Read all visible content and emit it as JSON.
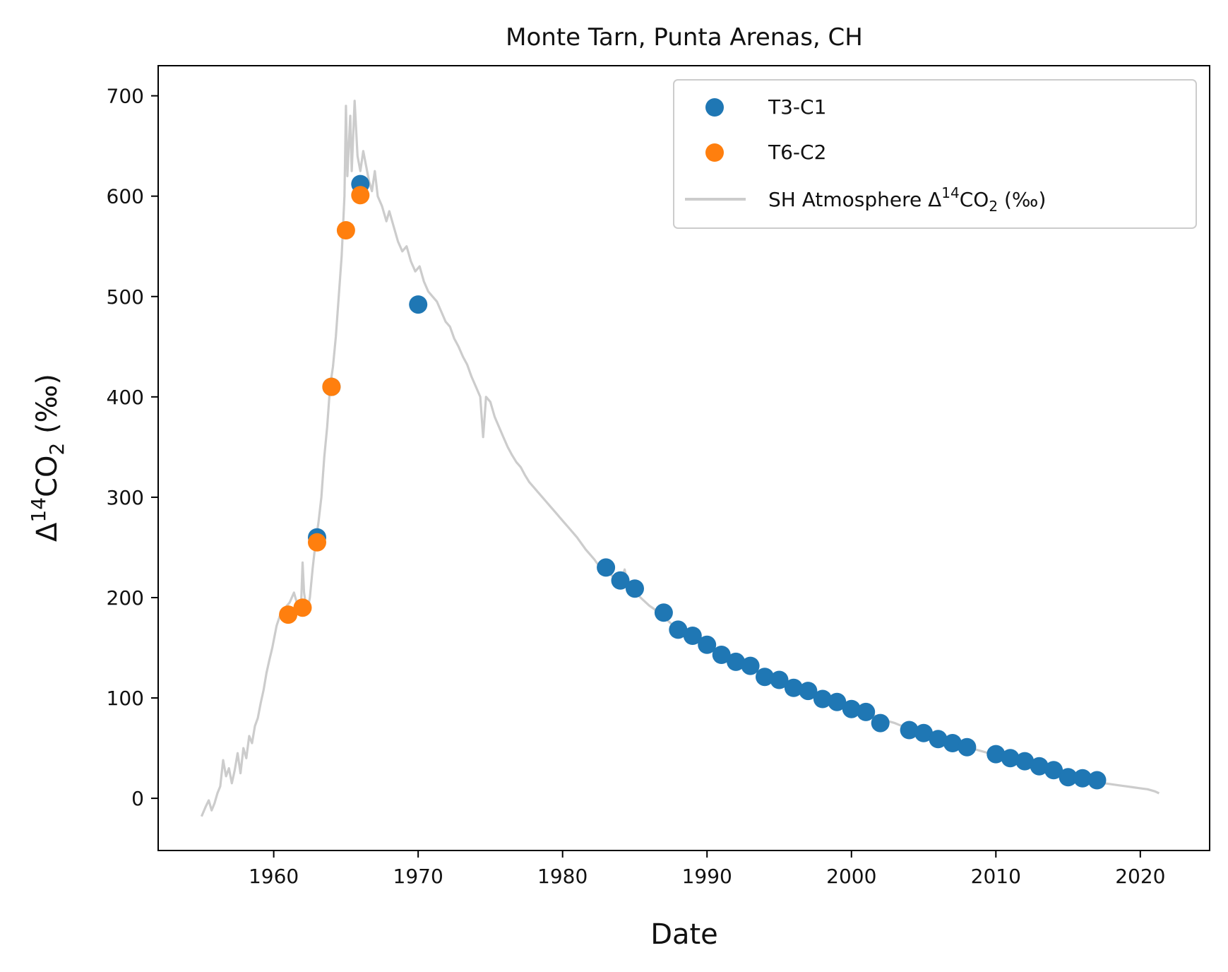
{
  "chart_data": {
    "type": "scatter",
    "title": "Monte Tarn, Punta Arenas, CH",
    "xlabel": "Date",
    "ylabel_prefix": "Δ",
    "ylabel_sup": "14",
    "ylabel_mid": "CO",
    "ylabel_sub": "2",
    "ylabel_suffix": " (‰)",
    "xlim": [
      1952.0,
      2024.8
    ],
    "ylim": [
      -52,
      730
    ],
    "xticks": [
      1960,
      1970,
      1980,
      1990,
      2000,
      2010,
      2020
    ],
    "yticks": [
      0,
      100,
      200,
      300,
      400,
      500,
      600,
      700
    ],
    "legend_position": "top-right",
    "series": [
      {
        "name": "T3-C1",
        "color": "#1f77b4",
        "marker": "circle",
        "points": [
          [
            1963,
            260
          ],
          [
            1964,
            410
          ],
          [
            1966,
            612
          ],
          [
            1970,
            492
          ],
          [
            1983,
            230
          ],
          [
            1984,
            217
          ],
          [
            1985,
            209
          ],
          [
            1987,
            185
          ],
          [
            1988,
            168
          ],
          [
            1989,
            162
          ],
          [
            1990,
            153
          ],
          [
            1991,
            143
          ],
          [
            1992,
            136
          ],
          [
            1993,
            132
          ],
          [
            1994,
            121
          ],
          [
            1995,
            118
          ],
          [
            1996,
            110
          ],
          [
            1997,
            107
          ],
          [
            1998,
            99
          ],
          [
            1999,
            96
          ],
          [
            2000,
            89
          ],
          [
            2001,
            86
          ],
          [
            2002,
            75
          ],
          [
            2004,
            68
          ],
          [
            2005,
            65
          ],
          [
            2006,
            59
          ],
          [
            2007,
            55
          ],
          [
            2008,
            51
          ],
          [
            2010,
            44
          ],
          [
            2011,
            40
          ],
          [
            2012,
            37
          ],
          [
            2013,
            32
          ],
          [
            2014,
            28
          ],
          [
            2015,
            21
          ],
          [
            2016,
            20
          ],
          [
            2017,
            18
          ]
        ]
      },
      {
        "name": "T6-C2",
        "color": "#ff7f0e",
        "marker": "circle",
        "points": [
          [
            1961,
            183
          ],
          [
            1962,
            190
          ],
          [
            1963,
            255
          ],
          [
            1964,
            410
          ],
          [
            1965,
            566
          ],
          [
            1966,
            601
          ]
        ]
      },
      {
        "name_prefix": "SH Atmosphere Δ",
        "name_sup": "14",
        "name_mid": "CO",
        "name_sub": "2",
        "name_suffix": " (‰)",
        "color": "#cccccc",
        "marker": "line",
        "points": [
          [
            1955.0,
            -18
          ],
          [
            1955.3,
            -8
          ],
          [
            1955.5,
            -2
          ],
          [
            1955.7,
            -12
          ],
          [
            1955.9,
            -5
          ],
          [
            1956.1,
            5
          ],
          [
            1956.3,
            12
          ],
          [
            1956.5,
            38
          ],
          [
            1956.7,
            22
          ],
          [
            1956.9,
            30
          ],
          [
            1957.1,
            15
          ],
          [
            1957.3,
            28
          ],
          [
            1957.5,
            45
          ],
          [
            1957.7,
            25
          ],
          [
            1957.9,
            50
          ],
          [
            1958.1,
            40
          ],
          [
            1958.3,
            62
          ],
          [
            1958.5,
            55
          ],
          [
            1958.7,
            72
          ],
          [
            1958.9,
            80
          ],
          [
            1959.1,
            95
          ],
          [
            1959.3,
            108
          ],
          [
            1959.5,
            125
          ],
          [
            1959.7,
            138
          ],
          [
            1959.9,
            150
          ],
          [
            1960.2,
            172
          ],
          [
            1960.5,
            185
          ],
          [
            1960.8,
            190
          ],
          [
            1961.1,
            195
          ],
          [
            1961.4,
            205
          ],
          [
            1961.7,
            190
          ],
          [
            1961.9,
            195
          ],
          [
            1962.0,
            235
          ],
          [
            1962.1,
            205
          ],
          [
            1962.3,
            185
          ],
          [
            1962.5,
            200
          ],
          [
            1962.7,
            230
          ],
          [
            1962.9,
            255
          ],
          [
            1963.1,
            275
          ],
          [
            1963.3,
            300
          ],
          [
            1963.5,
            340
          ],
          [
            1963.7,
            370
          ],
          [
            1963.9,
            410
          ],
          [
            1964.1,
            430
          ],
          [
            1964.3,
            460
          ],
          [
            1964.5,
            500
          ],
          [
            1964.7,
            540
          ],
          [
            1964.9,
            600
          ],
          [
            1965.0,
            690
          ],
          [
            1965.1,
            620
          ],
          [
            1965.3,
            680
          ],
          [
            1965.4,
            625
          ],
          [
            1965.6,
            695
          ],
          [
            1965.8,
            640
          ],
          [
            1966.0,
            625
          ],
          [
            1966.2,
            645
          ],
          [
            1966.4,
            630
          ],
          [
            1966.6,
            615
          ],
          [
            1966.8,
            605
          ],
          [
            1967.0,
            625
          ],
          [
            1967.2,
            600
          ],
          [
            1967.5,
            590
          ],
          [
            1967.8,
            575
          ],
          [
            1968.0,
            585
          ],
          [
            1968.3,
            570
          ],
          [
            1968.6,
            555
          ],
          [
            1968.9,
            545
          ],
          [
            1969.2,
            550
          ],
          [
            1969.5,
            535
          ],
          [
            1969.8,
            525
          ],
          [
            1970.1,
            530
          ],
          [
            1970.4,
            515
          ],
          [
            1970.7,
            505
          ],
          [
            1971.0,
            500
          ],
          [
            1971.3,
            495
          ],
          [
            1971.6,
            485
          ],
          [
            1971.9,
            475
          ],
          [
            1972.2,
            470
          ],
          [
            1972.5,
            458
          ],
          [
            1972.8,
            450
          ],
          [
            1973.1,
            440
          ],
          [
            1973.4,
            432
          ],
          [
            1973.7,
            420
          ],
          [
            1974.0,
            410
          ],
          [
            1974.3,
            400
          ],
          [
            1974.5,
            360
          ],
          [
            1974.7,
            400
          ],
          [
            1975.0,
            395
          ],
          [
            1975.3,
            380
          ],
          [
            1975.6,
            370
          ],
          [
            1975.9,
            360
          ],
          [
            1976.2,
            350
          ],
          [
            1976.5,
            342
          ],
          [
            1976.8,
            335
          ],
          [
            1977.1,
            330
          ],
          [
            1977.4,
            322
          ],
          [
            1977.7,
            315
          ],
          [
            1978.0,
            310
          ],
          [
            1978.3,
            305
          ],
          [
            1978.6,
            300
          ],
          [
            1978.9,
            295
          ],
          [
            1979.2,
            290
          ],
          [
            1979.5,
            285
          ],
          [
            1979.8,
            280
          ],
          [
            1980.1,
            275
          ],
          [
            1980.4,
            270
          ],
          [
            1980.7,
            265
          ],
          [
            1981.0,
            260
          ],
          [
            1981.3,
            254
          ],
          [
            1981.6,
            248
          ],
          [
            1981.9,
            243
          ],
          [
            1982.2,
            238
          ],
          [
            1982.5,
            232
          ],
          [
            1982.8,
            230
          ],
          [
            1983.1,
            226
          ],
          [
            1983.4,
            222
          ],
          [
            1983.7,
            218
          ],
          [
            1984.0,
            215
          ],
          [
            1984.3,
            228
          ],
          [
            1984.5,
            212
          ],
          [
            1984.8,
            208
          ],
          [
            1985.1,
            205
          ],
          [
            1985.4,
            200
          ],
          [
            1985.7,
            196
          ],
          [
            1986.0,
            192
          ],
          [
            1986.4,
            188
          ],
          [
            1986.8,
            183
          ],
          [
            1987.2,
            178
          ],
          [
            1987.6,
            173
          ],
          [
            1988.0,
            168
          ],
          [
            1988.5,
            164
          ],
          [
            1989.0,
            160
          ],
          [
            1989.5,
            155
          ],
          [
            1990.0,
            151
          ],
          [
            1990.5,
            147
          ],
          [
            1991.0,
            143
          ],
          [
            1991.5,
            140
          ],
          [
            1992.0,
            136
          ],
          [
            1992.5,
            133
          ],
          [
            1993.0,
            130
          ],
          [
            1993.5,
            126
          ],
          [
            1994.0,
            122
          ],
          [
            1994.5,
            119
          ],
          [
            1995.0,
            117
          ],
          [
            1995.5,
            114
          ],
          [
            1996.0,
            111
          ],
          [
            1996.5,
            108
          ],
          [
            1997.0,
            106
          ],
          [
            1997.5,
            103
          ],
          [
            1998.0,
            100
          ],
          [
            1998.5,
            98
          ],
          [
            1999.0,
            95
          ],
          [
            1999.5,
            93
          ],
          [
            2000.0,
            90
          ],
          [
            2000.5,
            88
          ],
          [
            2001.0,
            86
          ],
          [
            2001.5,
            83
          ],
          [
            2002.0,
            80
          ],
          [
            2002.5,
            77
          ],
          [
            2003.0,
            75
          ],
          [
            2003.5,
            72
          ],
          [
            2004.0,
            69
          ],
          [
            2004.5,
            67
          ],
          [
            2005.0,
            64
          ],
          [
            2005.5,
            62
          ],
          [
            2006.0,
            60
          ],
          [
            2006.5,
            58
          ],
          [
            2007.0,
            55
          ],
          [
            2007.5,
            53
          ],
          [
            2008.0,
            51
          ],
          [
            2008.5,
            49
          ],
          [
            2009.0,
            47
          ],
          [
            2009.5,
            45
          ],
          [
            2010.0,
            43
          ],
          [
            2010.5,
            41
          ],
          [
            2011.0,
            39
          ],
          [
            2011.5,
            37
          ],
          [
            2012.0,
            35
          ],
          [
            2012.5,
            33
          ],
          [
            2013.0,
            31
          ],
          [
            2013.5,
            29
          ],
          [
            2014.0,
            27
          ],
          [
            2014.5,
            25
          ],
          [
            2015.0,
            23
          ],
          [
            2015.5,
            21
          ],
          [
            2016.0,
            20
          ],
          [
            2016.5,
            18
          ],
          [
            2017.0,
            16
          ],
          [
            2017.5,
            15
          ],
          [
            2018.0,
            14
          ],
          [
            2018.5,
            13
          ],
          [
            2019.0,
            12
          ],
          [
            2019.5,
            11
          ],
          [
            2020.0,
            10
          ],
          [
            2020.5,
            9
          ],
          [
            2021.0,
            7
          ],
          [
            2021.3,
            5
          ]
        ]
      }
    ]
  }
}
